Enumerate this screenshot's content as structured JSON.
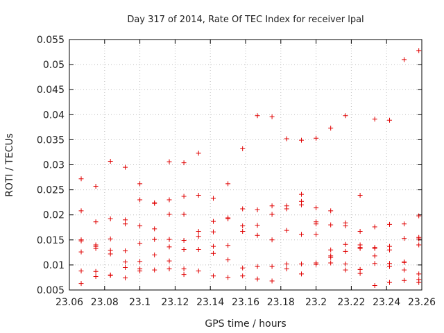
{
  "chart_data": {
    "type": "scatter",
    "title": "Day 317 of 2014, Rate Of TEC Index for receiver lpal",
    "xlabel": "GPS time / hours",
    "ylabel": "ROTI / TECUs",
    "xlim": [
      23.06,
      23.26
    ],
    "ylim": [
      0.005,
      0.055
    ],
    "xticks": [
      23.06,
      23.08,
      23.1,
      23.12,
      23.14,
      23.16,
      23.18,
      23.2,
      23.22,
      23.24,
      23.26
    ],
    "xtick_labels": [
      "23.06",
      "23.08",
      "23.1",
      "23.12",
      "23.14",
      "23.16",
      "23.18",
      "23.2",
      "23.22",
      "23.24",
      "23.26"
    ],
    "yticks": [
      0.005,
      0.01,
      0.015,
      0.02,
      0.025,
      0.03,
      0.035,
      0.04,
      0.045,
      0.05,
      0.055
    ],
    "ytick_labels": [
      "0.005",
      "0.01",
      "0.015",
      "0.02",
      "0.025",
      "0.03",
      "0.035",
      "0.04",
      "0.045",
      "0.05",
      "0.055"
    ],
    "grid": true,
    "marker": "+",
    "marker_color": "#e00000",
    "series": [
      {
        "name": "lpal",
        "points": [
          [
            23.0667,
            0.0272
          ],
          [
            23.0667,
            0.0208
          ],
          [
            23.0667,
            0.015
          ],
          [
            23.0667,
            0.0148
          ],
          [
            23.0667,
            0.0126
          ],
          [
            23.0667,
            0.0088
          ],
          [
            23.0667,
            0.0063
          ],
          [
            23.075,
            0.0257
          ],
          [
            23.075,
            0.0186
          ],
          [
            23.075,
            0.014
          ],
          [
            23.075,
            0.0137
          ],
          [
            23.075,
            0.0133
          ],
          [
            23.075,
            0.0087
          ],
          [
            23.075,
            0.0077
          ],
          [
            23.0833,
            0.0307
          ],
          [
            23.0833,
            0.0192
          ],
          [
            23.0833,
            0.0152
          ],
          [
            23.0833,
            0.0129
          ],
          [
            23.0833,
            0.0122
          ],
          [
            23.0833,
            0.008
          ],
          [
            23.0833,
            0.0079
          ],
          [
            23.0917,
            0.0295
          ],
          [
            23.0917,
            0.019
          ],
          [
            23.0917,
            0.0182
          ],
          [
            23.0917,
            0.0128
          ],
          [
            23.0917,
            0.0106
          ],
          [
            23.0917,
            0.0095
          ],
          [
            23.0917,
            0.0074
          ],
          [
            23.1,
            0.0262
          ],
          [
            23.1,
            0.023
          ],
          [
            23.1,
            0.0178
          ],
          [
            23.1,
            0.0143
          ],
          [
            23.1,
            0.0107
          ],
          [
            23.1,
            0.0092
          ],
          [
            23.1,
            0.0088
          ],
          [
            23.1083,
            0.0224
          ],
          [
            23.1083,
            0.0223
          ],
          [
            23.1083,
            0.0172
          ],
          [
            23.1083,
            0.0151
          ],
          [
            23.1083,
            0.012
          ],
          [
            23.1083,
            0.009
          ],
          [
            23.1167,
            0.0306
          ],
          [
            23.1167,
            0.023
          ],
          [
            23.1167,
            0.0201
          ],
          [
            23.1167,
            0.0151
          ],
          [
            23.1167,
            0.0136
          ],
          [
            23.1167,
            0.0108
          ],
          [
            23.1167,
            0.0092
          ],
          [
            23.125,
            0.0304
          ],
          [
            23.125,
            0.0237
          ],
          [
            23.125,
            0.0201
          ],
          [
            23.125,
            0.0149
          ],
          [
            23.125,
            0.0131
          ],
          [
            23.125,
            0.0092
          ],
          [
            23.125,
            0.0081
          ],
          [
            23.1333,
            0.0323
          ],
          [
            23.1333,
            0.0239
          ],
          [
            23.1333,
            0.0167
          ],
          [
            23.1333,
            0.0157
          ],
          [
            23.1333,
            0.0131
          ],
          [
            23.1333,
            0.0088
          ],
          [
            23.1417,
            0.0233
          ],
          [
            23.1417,
            0.0187
          ],
          [
            23.1417,
            0.0166
          ],
          [
            23.1417,
            0.0137
          ],
          [
            23.1417,
            0.0123
          ],
          [
            23.1417,
            0.0078
          ],
          [
            23.15,
            0.0262
          ],
          [
            23.15,
            0.0194
          ],
          [
            23.15,
            0.0192
          ],
          [
            23.15,
            0.0139
          ],
          [
            23.15,
            0.011
          ],
          [
            23.15,
            0.0075
          ],
          [
            23.1583,
            0.0332
          ],
          [
            23.1583,
            0.0212
          ],
          [
            23.1583,
            0.0178
          ],
          [
            23.1583,
            0.0167
          ],
          [
            23.1583,
            0.0094
          ],
          [
            23.1583,
            0.0078
          ],
          [
            23.1667,
            0.0398
          ],
          [
            23.1667,
            0.021
          ],
          [
            23.1667,
            0.0179
          ],
          [
            23.1667,
            0.0159
          ],
          [
            23.1667,
            0.0097
          ],
          [
            23.1667,
            0.0072
          ],
          [
            23.175,
            0.0396
          ],
          [
            23.175,
            0.0218
          ],
          [
            23.175,
            0.0201
          ],
          [
            23.175,
            0.015
          ],
          [
            23.175,
            0.0097
          ],
          [
            23.175,
            0.0068
          ],
          [
            23.1833,
            0.0352
          ],
          [
            23.1833,
            0.0218
          ],
          [
            23.1833,
            0.0212
          ],
          [
            23.1833,
            0.0169
          ],
          [
            23.1833,
            0.0102
          ],
          [
            23.1833,
            0.0092
          ],
          [
            23.1917,
            0.0349
          ],
          [
            23.1917,
            0.0241
          ],
          [
            23.1917,
            0.0227
          ],
          [
            23.1917,
            0.022
          ],
          [
            23.1917,
            0.0161
          ],
          [
            23.1917,
            0.0102
          ],
          [
            23.1917,
            0.0082
          ],
          [
            23.2,
            0.0353
          ],
          [
            23.2,
            0.0214
          ],
          [
            23.2,
            0.0186
          ],
          [
            23.2,
            0.0182
          ],
          [
            23.2,
            0.0161
          ],
          [
            23.2,
            0.0104
          ],
          [
            23.2,
            0.0101
          ],
          [
            23.2083,
            0.0373
          ],
          [
            23.2083,
            0.0208
          ],
          [
            23.2083,
            0.018
          ],
          [
            23.2083,
            0.013
          ],
          [
            23.2083,
            0.0118
          ],
          [
            23.2083,
            0.0115
          ],
          [
            23.2083,
            0.0104
          ],
          [
            23.2167,
            0.0398
          ],
          [
            23.2167,
            0.0184
          ],
          [
            23.2167,
            0.0178
          ],
          [
            23.2167,
            0.0141
          ],
          [
            23.2167,
            0.0127
          ],
          [
            23.2167,
            0.0102
          ],
          [
            23.2167,
            0.009
          ],
          [
            23.225,
            0.0239
          ],
          [
            23.225,
            0.0167
          ],
          [
            23.225,
            0.014
          ],
          [
            23.225,
            0.0135
          ],
          [
            23.225,
            0.0133
          ],
          [
            23.225,
            0.0091
          ],
          [
            23.225,
            0.0083
          ],
          [
            23.2333,
            0.0391
          ],
          [
            23.2333,
            0.0176
          ],
          [
            23.2333,
            0.0135
          ],
          [
            23.2333,
            0.0133
          ],
          [
            23.2333,
            0.0118
          ],
          [
            23.2333,
            0.0103
          ],
          [
            23.2333,
            0.0059
          ],
          [
            23.2417,
            0.0389
          ],
          [
            23.2417,
            0.0181
          ],
          [
            23.2417,
            0.0137
          ],
          [
            23.2417,
            0.013
          ],
          [
            23.2417,
            0.0103
          ],
          [
            23.2417,
            0.0097
          ],
          [
            23.2417,
            0.0065
          ],
          [
            23.25,
            0.051
          ],
          [
            23.25,
            0.0182
          ],
          [
            23.25,
            0.0153
          ],
          [
            23.25,
            0.0106
          ],
          [
            23.25,
            0.0105
          ],
          [
            23.25,
            0.009
          ],
          [
            23.25,
            0.0069
          ],
          [
            23.2583,
            0.0528
          ],
          [
            23.2583,
            0.0198
          ],
          [
            23.2583,
            0.0155
          ],
          [
            23.2583,
            0.0152
          ],
          [
            23.2583,
            0.014
          ],
          [
            23.2583,
            0.0082
          ],
          [
            23.2583,
            0.0071
          ],
          [
            23.2583,
            0.0065
          ]
        ]
      }
    ]
  }
}
